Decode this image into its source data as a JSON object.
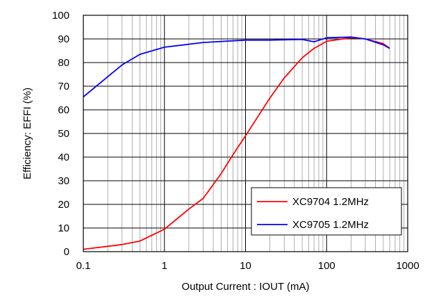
{
  "chart_data": {
    "type": "line",
    "title": "",
    "xlabel": "Output Current : IOUT (mA)",
    "ylabel": "Efficiency: EFFI (%)",
    "x_scale": "log",
    "xlim": [
      0.1,
      1000
    ],
    "ylim": [
      0,
      100
    ],
    "x_ticks": [
      "0.1",
      "1",
      "10",
      "100",
      "1000"
    ],
    "y_ticks": [
      "0",
      "10",
      "20",
      "30",
      "40",
      "50",
      "60",
      "70",
      "80",
      "90",
      "100"
    ],
    "grid": true,
    "legend_position": "bottom-right",
    "series": [
      {
        "name": "XC9704 1.2MHz",
        "color": "#ff0000",
        "x": [
          0.1,
          0.3,
          0.5,
          1,
          2,
          3,
          5,
          7,
          10,
          20,
          30,
          50,
          70,
          100,
          200,
          300,
          500,
          600
        ],
        "y": [
          1,
          3,
          4.5,
          9.5,
          18,
          22.5,
          33,
          41,
          49,
          65,
          73.5,
          82,
          86,
          89,
          90.5,
          90,
          88,
          86
        ]
      },
      {
        "name": "XC9705 1.2MHz",
        "color": "#0000ff",
        "x": [
          0.1,
          0.3,
          0.5,
          1,
          3,
          10,
          20,
          50,
          70,
          100,
          200,
          300,
          500,
          600
        ],
        "y": [
          65.5,
          79,
          83.5,
          86.5,
          88.5,
          89.5,
          89.5,
          89.8,
          88.8,
          90.5,
          90.8,
          90,
          87.5,
          86
        ]
      }
    ]
  }
}
